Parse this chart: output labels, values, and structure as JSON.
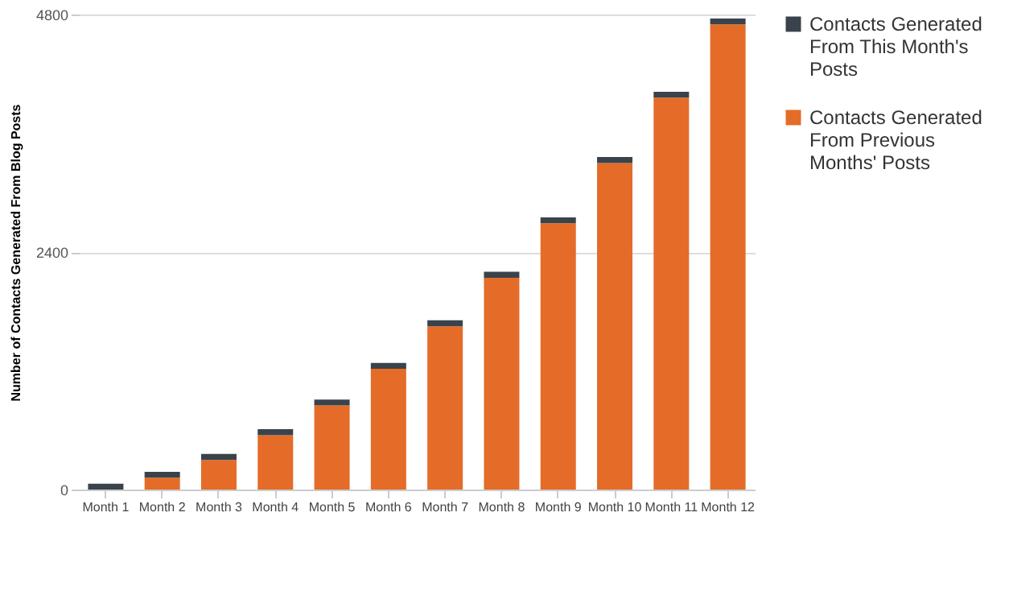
{
  "chart_data": {
    "type": "bar",
    "stacked": true,
    "ylabel": "Number of Contacts Generated From Blog Posts",
    "categories": [
      "Month 1",
      "Month 2",
      "Month 3",
      "Month 4",
      "Month 5",
      "Month 6",
      "Month 7",
      "Month 8",
      "Month 9",
      "Month 10",
      "Month 11",
      "Month 12"
    ],
    "series": [
      {
        "name": "Contacts Generated From Previous Months' Posts",
        "color": "#e46c28",
        "values": [
          0,
          120,
          300,
          550,
          850,
          1220,
          1650,
          2140,
          2690,
          3300,
          3960,
          4700
        ]
      },
      {
        "name": "Contacts Generated From This Month's Posts",
        "color": "#3a434b",
        "values": [
          60,
          60,
          60,
          60,
          60,
          60,
          60,
          60,
          60,
          60,
          60,
          60
        ]
      }
    ],
    "ylim": [
      0,
      4800
    ],
    "yticks": [
      0,
      2400,
      4800
    ],
    "grid": "y",
    "legend": "right"
  }
}
